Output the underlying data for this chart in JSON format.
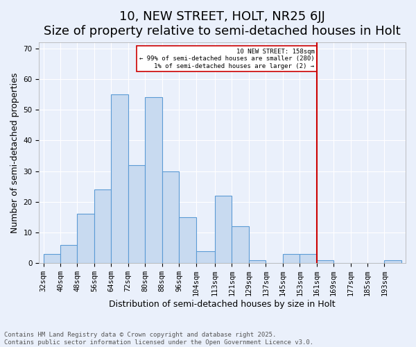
{
  "title": "10, NEW STREET, HOLT, NR25 6JJ",
  "subtitle": "Size of property relative to semi-detached houses in Holt",
  "xlabel": "Distribution of semi-detached houses by size in Holt",
  "ylabel": "Number of semi-detached properties",
  "footer": "Contains HM Land Registry data © Crown copyright and database right 2025.\nContains public sector information licensed under the Open Government Licence v3.0.",
  "categories": [
    "32sqm",
    "40sqm",
    "48sqm",
    "56sqm",
    "64sqm",
    "72sqm",
    "80sqm",
    "88sqm",
    "96sqm",
    "104sqm",
    "113sqm",
    "121sqm",
    "129sqm",
    "137sqm",
    "145sqm",
    "153sqm",
    "161sqm",
    "169sqm",
    "177sqm",
    "185sqm",
    "193sqm"
  ],
  "bar_values": [
    3,
    6,
    16,
    24,
    55,
    32,
    54,
    30,
    15,
    4,
    22,
    12,
    1,
    0,
    3,
    3,
    1,
    0,
    0,
    0,
    1
  ],
  "bar_color": "#c8daf0",
  "bar_edge_color": "#5b9bd5",
  "background_color": "#eaf0fb",
  "grid_color": "#ffffff",
  "vline_color": "#cc0000",
  "ylim": [
    0,
    72
  ],
  "yticks": [
    0,
    10,
    20,
    30,
    40,
    50,
    60,
    70
  ],
  "title_fontsize": 13,
  "axis_fontsize": 9,
  "tick_fontsize": 7.5,
  "footer_fontsize": 6.5,
  "bin_edges": [
    32,
    40,
    48,
    56,
    64,
    72,
    80,
    88,
    96,
    104,
    113,
    121,
    129,
    137,
    145,
    153,
    161,
    169,
    177,
    185,
    193,
    201
  ]
}
